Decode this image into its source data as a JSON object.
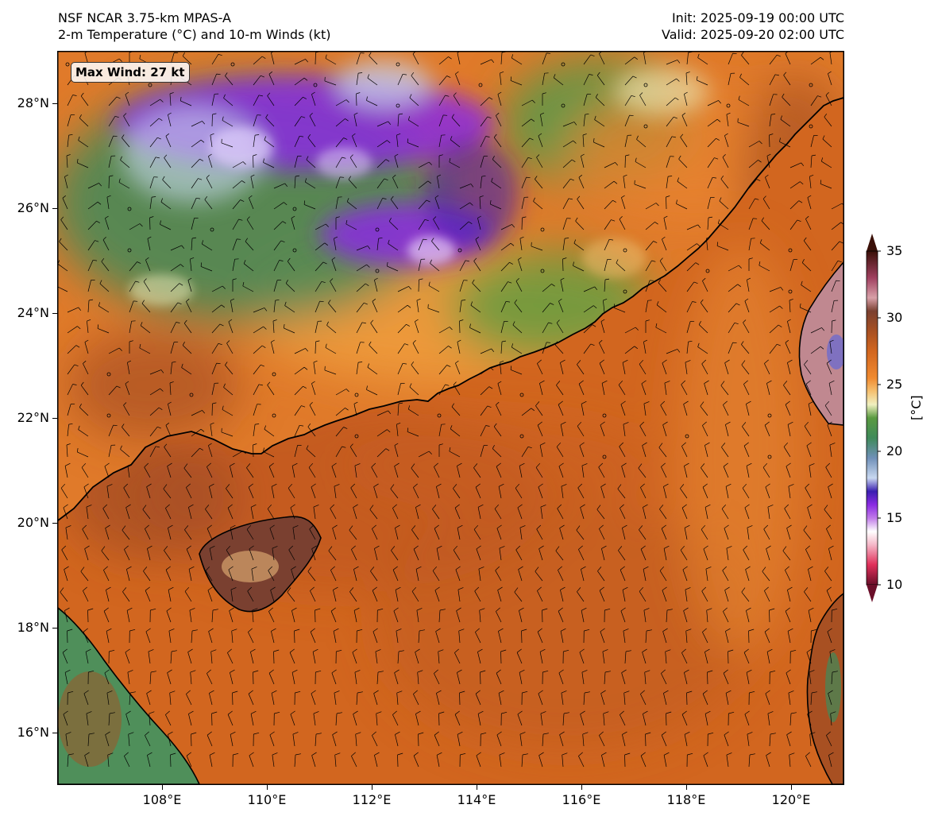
{
  "header": {
    "model": "NSF NCAR 3.75-km MPAS-A",
    "field": "2-m Temperature (°C) and 10-m Winds (kt)",
    "init": "Init: 2025-09-19 00:00 UTC",
    "valid": "Valid: 2025-09-20 02:00 UTC"
  },
  "max_wind_label": "Max Wind: 27 kt",
  "map": {
    "projection": "lat-lon",
    "lon_range": [
      106,
      121
    ],
    "lat_range": [
      15,
      29
    ],
    "lat_ticks": [
      "16°N",
      "18°N",
      "20°N",
      "22°N",
      "24°N",
      "26°N",
      "28°N"
    ],
    "lon_ticks": [
      "108°E",
      "110°E",
      "112°E",
      "114°E",
      "116°E",
      "118°E",
      "120°E"
    ],
    "ocean_color": "#d2661f",
    "coastline_color": "#000000",
    "wind_barb_color": "#000000",
    "land_features": [
      "Hainan",
      "Taiwan",
      "Leizhou Peninsula",
      "South China coast",
      "Vietnam coast",
      "Luzon"
    ]
  },
  "colorbar": {
    "label": "[°C]",
    "range": [
      10,
      35
    ],
    "extend": "both",
    "ticks": [
      "10",
      "15",
      "20",
      "25",
      "30",
      "35"
    ],
    "stops": [
      {
        "v": 10,
        "c": "#6b0f2a"
      },
      {
        "v": 11.5,
        "c": "#e0305a"
      },
      {
        "v": 13,
        "c": "#f5b8c8"
      },
      {
        "v": 14,
        "c": "#ffffff"
      },
      {
        "v": 15,
        "c": "#c07ae8"
      },
      {
        "v": 16,
        "c": "#8a2be2"
      },
      {
        "v": 17,
        "c": "#3a1fb0"
      },
      {
        "v": 18,
        "c": "#c8d8f0"
      },
      {
        "v": 19.5,
        "c": "#7090b8"
      },
      {
        "v": 21,
        "c": "#3f8a5a"
      },
      {
        "v": 22.5,
        "c": "#5a9a40"
      },
      {
        "v": 23.5,
        "c": "#f0f0c0"
      },
      {
        "v": 24.5,
        "c": "#f5c070"
      },
      {
        "v": 25.5,
        "c": "#f08a30"
      },
      {
        "v": 27.5,
        "c": "#d2661f"
      },
      {
        "v": 29,
        "c": "#a85022"
      },
      {
        "v": 30.5,
        "c": "#7a4030"
      },
      {
        "v": 31.5,
        "c": "#d8a0a8"
      },
      {
        "v": 33,
        "c": "#a04060"
      },
      {
        "v": 35,
        "c": "#3a1008"
      }
    ]
  }
}
